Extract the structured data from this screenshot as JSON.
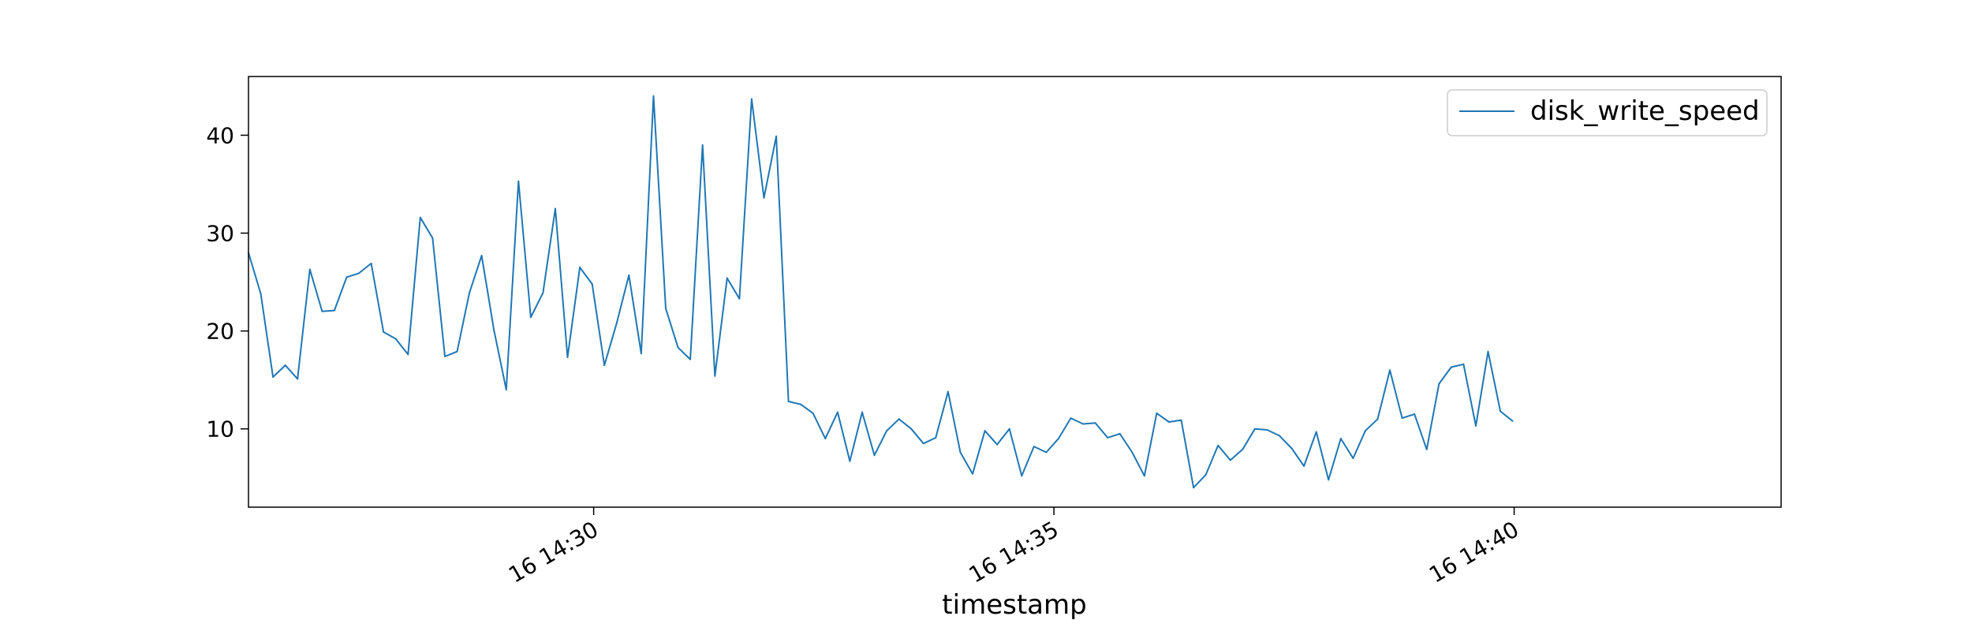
{
  "chart_data": {
    "type": "line",
    "title": "",
    "xlabel": "timestamp",
    "ylabel": "",
    "x_start": "16 14:26:15",
    "x_step_seconds": 8,
    "xlim": [
      "16 14:26:15",
      "16 14:42:54"
    ],
    "ylim": [
      2,
      46
    ],
    "y_ticks": [
      10,
      20,
      30,
      40
    ],
    "y_tick_labels": [
      "10",
      "20",
      "30",
      "40"
    ],
    "x_ticks": [
      "16 14:30",
      "16 14:35",
      "16 14:40"
    ],
    "x_tick_labels": [
      "16 14:30",
      "16 14:35",
      "16 14:40"
    ],
    "legend": {
      "location": "top-right",
      "entries": [
        "disk_write_speed"
      ]
    },
    "grid": false,
    "colors": {
      "series": "#1f77b4",
      "axes": "#000000",
      "legend_border": "#cccccc"
    },
    "series": [
      {
        "name": "disk_write_speed",
        "values": [
          28.0,
          23.8,
          15.3,
          16.5,
          15.1,
          26.3,
          22.0,
          22.1,
          25.5,
          25.9,
          26.9,
          19.9,
          19.2,
          17.6,
          31.6,
          29.5,
          17.4,
          17.9,
          23.9,
          27.7,
          20.1,
          14.0,
          35.3,
          21.4,
          23.9,
          32.5,
          17.3,
          26.5,
          24.8,
          16.5,
          20.8,
          25.7,
          17.7,
          44.0,
          22.3,
          18.3,
          17.1,
          39.0,
          15.4,
          25.4,
          23.3,
          43.7,
          33.6,
          39.9,
          12.8,
          12.5,
          11.6,
          9.0,
          11.7,
          6.7,
          11.7,
          7.3,
          9.8,
          11.0,
          10.0,
          8.5,
          9.1,
          13.8,
          7.6,
          5.4,
          9.8,
          8.4,
          10.0,
          5.2,
          8.2,
          7.6,
          9.0,
          11.1,
          10.5,
          10.6,
          9.1,
          9.5,
          7.6,
          5.2,
          11.6,
          10.7,
          10.9,
          4.0,
          5.3,
          8.3,
          6.8,
          7.9,
          10.0,
          9.9,
          9.3,
          8.0,
          6.2,
          9.7,
          4.8,
          9.0,
          7.0,
          9.8,
          11.0,
          16.0,
          11.1,
          11.5,
          7.9,
          14.6,
          16.3,
          16.6,
          10.3,
          17.9,
          11.8,
          10.8
        ]
      }
    ]
  }
}
